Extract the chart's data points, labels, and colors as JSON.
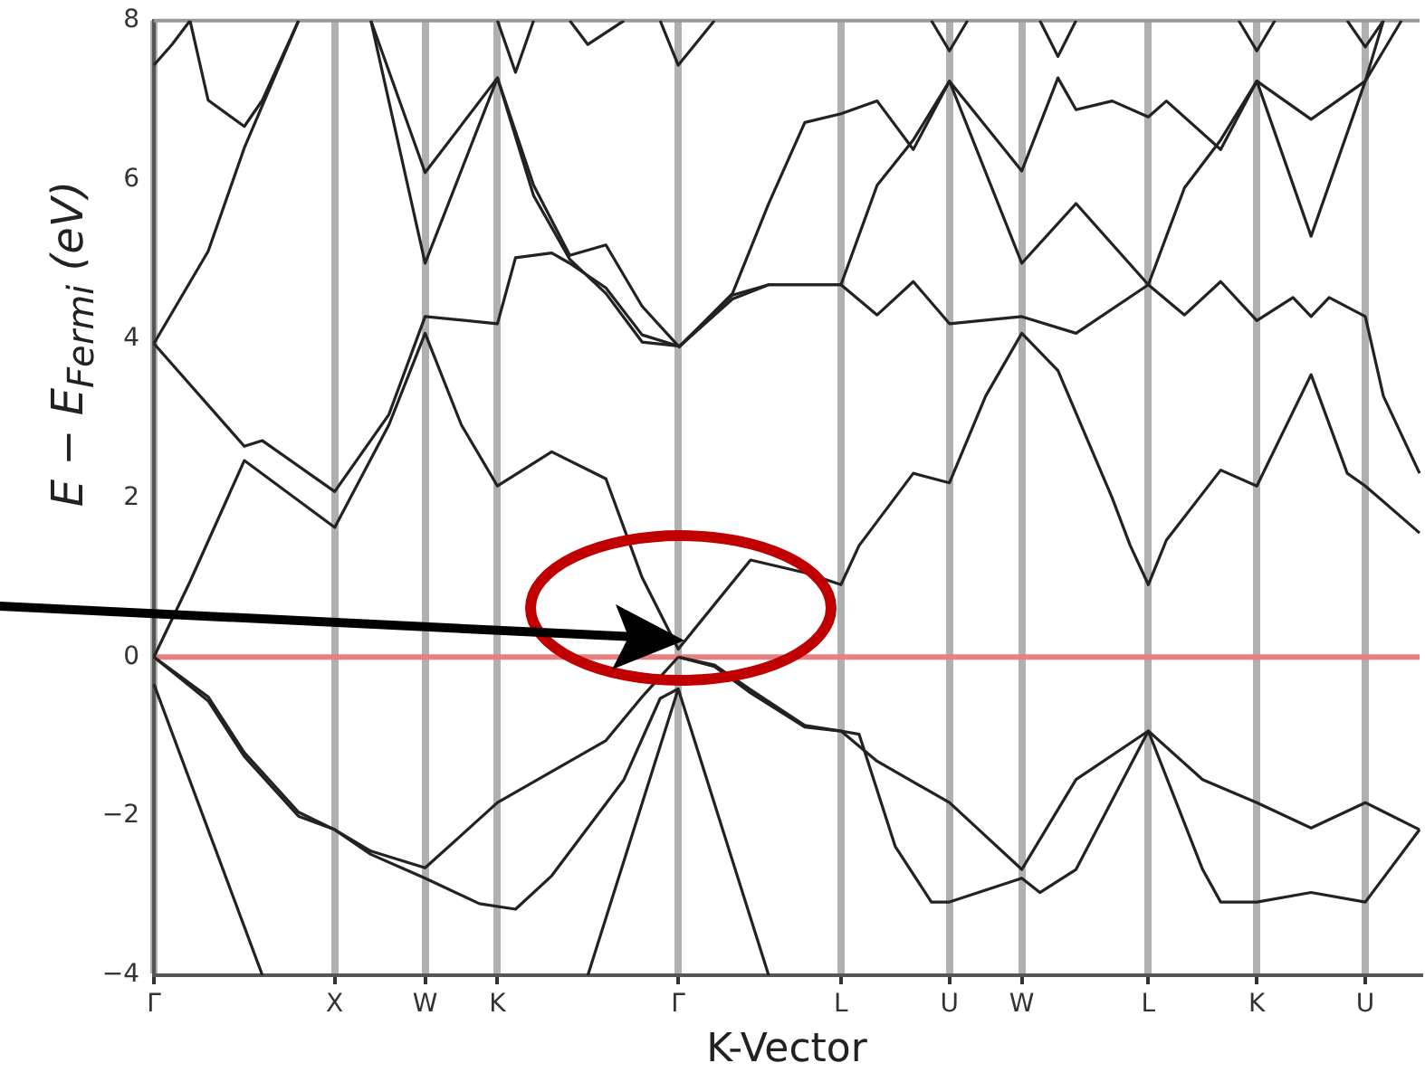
{
  "chart_data": {
    "type": "line",
    "xlabel": "K-Vector",
    "ylabel": "E − E$_{Fermi}$ (eV)",
    "ylim": [
      -4,
      8
    ],
    "categories": [
      "Γ",
      null,
      null,
      null,
      null,
      null,
      null,
      null,
      null,
      null,
      "X",
      null,
      null,
      null,
      null,
      "W",
      null,
      null,
      null,
      "K",
      null,
      null,
      null,
      null,
      null,
      null,
      null,
      null,
      null,
      "Γ",
      null,
      null,
      null,
      null,
      null,
      null,
      null,
      null,
      "L",
      null,
      null,
      null,
      null,
      null,
      "U",
      null,
      null,
      null,
      "W",
      null,
      null,
      null,
      null,
      null,
      null,
      "L",
      null,
      null,
      null,
      null,
      null,
      "K",
      null,
      null,
      null,
      null,
      null,
      "U",
      null,
      null,
      null
    ],
    "yticks": [
      {
        "value": -4,
        "label": "−4"
      },
      {
        "value": -2,
        "label": "−2"
      },
      0,
      2,
      4,
      6,
      8
    ],
    "grid": "x",
    "marker": "none",
    "line_style": "solid",
    "ref_lines": [
      {
        "axis": "y",
        "value": 0,
        "color": "#e88080"
      }
    ],
    "series": [
      {
        "color": "#222222",
        "values": [
          -0.34,
          null,
          null,
          null,
          null,
          null,
          -4,
          null,
          null,
          null,
          null,
          null,
          null,
          null,
          null,
          null,
          null,
          null,
          null,
          null,
          null,
          null,
          null,
          null,
          null,
          null,
          null,
          null,
          null,
          null,
          null,
          null,
          null,
          null,
          null,
          null,
          null,
          null,
          null,
          null,
          null,
          null,
          null,
          null,
          null,
          null,
          null,
          null,
          null,
          null,
          null,
          null,
          null,
          null,
          null,
          null,
          null,
          null,
          null,
          null,
          null,
          null,
          null,
          null,
          null,
          null,
          null,
          null,
          null,
          null,
          null
        ]
      },
      {
        "color": "#222222",
        "values": [
          null,
          null,
          null,
          null,
          null,
          null,
          null,
          null,
          null,
          null,
          null,
          null,
          null,
          null,
          null,
          null,
          null,
          null,
          null,
          null,
          null,
          null,
          null,
          null,
          -4,
          null,
          null,
          null,
          null,
          -0.4,
          null,
          null,
          null,
          null,
          -4,
          null,
          null,
          null,
          null,
          null,
          null,
          null,
          null,
          null,
          null,
          null,
          null,
          null,
          null,
          null,
          null,
          null,
          null,
          null,
          null,
          null,
          null,
          null,
          null,
          null,
          null,
          null,
          null,
          null,
          null,
          null,
          null,
          null,
          null,
          null,
          null
        ]
      },
      {
        "color": "#222222",
        "values": [
          0,
          null,
          null,
          -0.5,
          null,
          -1.2,
          null,
          null,
          -1.95,
          null,
          -2.17,
          null,
          -2.44,
          null,
          null,
          -2.65,
          null,
          null,
          null,
          -1.83,
          null,
          null,
          null,
          null,
          null,
          -1.05,
          null,
          -0.5,
          null,
          0,
          null,
          null,
          null,
          null,
          null,
          null,
          null,
          null,
          null,
          null,
          null,
          null,
          null,
          null,
          null,
          null,
          null,
          null,
          null,
          null,
          null,
          null,
          null,
          null,
          null,
          null,
          null,
          null,
          null,
          null,
          null,
          null,
          null,
          null,
          null,
          null,
          null,
          null,
          null,
          null,
          null
        ]
      },
      {
        "color": "#222222",
        "values": [
          0,
          null,
          null,
          -0.55,
          null,
          -1.25,
          null,
          null,
          -2.0,
          null,
          -2.17,
          null,
          -2.48,
          null,
          null,
          -2.78,
          null,
          null,
          -3.1,
          null,
          -3.17,
          null,
          -2.75,
          null,
          null,
          null,
          -1.54,
          null,
          -0.52,
          -0.4,
          null,
          null,
          null,
          null,
          null,
          null,
          null,
          null,
          null,
          null,
          null,
          null,
          null,
          null,
          null,
          null,
          null,
          null,
          null,
          null,
          null,
          null,
          null,
          null,
          null,
          null,
          null,
          null,
          null,
          null,
          null,
          null,
          null,
          null,
          null,
          null,
          null,
          null,
          null,
          null,
          null
        ]
      },
      {
        "color": "#222222",
        "values": [
          0,
          null,
          0.95,
          null,
          null,
          2.47,
          null,
          null,
          null,
          null,
          1.63,
          null,
          null,
          2.92,
          null,
          4.07,
          null,
          2.92,
          null,
          2.15,
          null,
          null,
          2.58,
          null,
          null,
          2.24,
          null,
          1.0,
          null,
          0.1,
          null,
          null,
          null,
          1.22,
          null,
          null,
          1.06,
          null,
          0.91,
          1.4,
          null,
          null,
          2.31,
          null,
          2.19,
          null,
          3.28,
          null,
          4.07,
          null,
          3.6,
          null,
          null,
          2.0,
          1.4,
          0.91,
          1.47,
          null,
          null,
          2.35,
          null,
          2.15,
          null,
          null,
          3.55,
          null,
          2.31,
          2.15,
          null,
          null,
          1.56
        ]
      },
      {
        "color": "#222222",
        "values": [
          3.94,
          null,
          null,
          null,
          null,
          2.65,
          2.72,
          null,
          null,
          null,
          2.08,
          null,
          null,
          3.05,
          null,
          4.28,
          null,
          null,
          null,
          4.19,
          5.02,
          null,
          5.08,
          4.95,
          null,
          4.64,
          null,
          4.05,
          null,
          3.91,
          null,
          null,
          null,
          null,
          null,
          null,
          null,
          null,
          null,
          null,
          null,
          null,
          null,
          null,
          null,
          null,
          null,
          null,
          null,
          null,
          null,
          null,
          null,
          null,
          null,
          null,
          null,
          null,
          null,
          null,
          null,
          null,
          null,
          null,
          null,
          null,
          null,
          null,
          null,
          null,
          null
        ]
      },
      {
        "color": "#222222",
        "values": [
          3.94,
          null,
          null,
          5.1,
          null,
          6.4,
          null,
          null,
          8,
          null,
          null,
          null,
          null,
          null,
          null,
          null,
          null,
          null,
          null,
          null,
          null,
          null,
          null,
          null,
          null,
          null,
          null,
          null,
          null,
          null,
          null,
          null,
          null,
          null,
          null,
          null,
          null,
          null,
          null,
          null,
          null,
          null,
          null,
          null,
          null,
          null,
          null,
          null,
          null,
          null,
          null,
          null,
          null,
          null,
          null,
          null,
          null,
          null,
          null,
          null,
          null,
          null,
          null,
          null,
          null,
          null,
          null,
          null,
          null,
          null,
          null
        ]
      },
      {
        "color": "#222222",
        "values": [
          7.44,
          7.7,
          8,
          null,
          null,
          null,
          null,
          null,
          null,
          null,
          null,
          null,
          null,
          null,
          null,
          null,
          null,
          null,
          null,
          null,
          null,
          null,
          null,
          null,
          null,
          null,
          null,
          null,
          null,
          null,
          null,
          null,
          null,
          null,
          null,
          null,
          null,
          null,
          null,
          null,
          null,
          null,
          null,
          null,
          null,
          null,
          null,
          null,
          null,
          null,
          null,
          null,
          null,
          null,
          null,
          null,
          null,
          null,
          null,
          null,
          null,
          null,
          null,
          null,
          null,
          null,
          null,
          null,
          null,
          null,
          null
        ]
      },
      {
        "color": "#222222",
        "values": [
          null,
          null,
          8,
          7.0,
          null,
          6.67,
          7.0,
          null,
          8,
          null,
          null,
          null,
          null,
          null,
          null,
          null,
          null,
          null,
          null,
          null,
          null,
          null,
          null,
          null,
          null,
          null,
          null,
          null,
          null,
          null,
          null,
          null,
          null,
          null,
          null,
          null,
          null,
          null,
          null,
          null,
          null,
          null,
          null,
          null,
          null,
          null,
          null,
          null,
          null,
          null,
          null,
          null,
          null,
          null,
          null,
          null,
          null,
          null,
          null,
          null,
          null,
          null,
          null,
          null,
          null,
          null,
          null,
          null,
          null,
          null,
          null
        ]
      },
      {
        "color": "#222222",
        "values": [
          null,
          null,
          null,
          null,
          null,
          null,
          null,
          null,
          null,
          null,
          null,
          null,
          8,
          null,
          null,
          6.09,
          null,
          null,
          null,
          7.28,
          null,
          5.93,
          null,
          5.05,
          null,
          5.18,
          null,
          4.41,
          null,
          3.91,
          null,
          null,
          null,
          null,
          null,
          null,
          null,
          null,
          null,
          null,
          null,
          null,
          null,
          null,
          null,
          null,
          null,
          null,
          null,
          null,
          null,
          null,
          null,
          null,
          null,
          null,
          null,
          null,
          null,
          null,
          null,
          null,
          null,
          null,
          null,
          null,
          null,
          null,
          null,
          null,
          null
        ]
      },
      {
        "color": "#222222",
        "values": [
          null,
          null,
          null,
          null,
          null,
          null,
          null,
          null,
          null,
          null,
          null,
          null,
          8,
          null,
          null,
          4.95,
          null,
          null,
          null,
          7.28,
          null,
          5.8,
          null,
          5.0,
          null,
          4.57,
          null,
          3.96,
          null,
          3.91,
          null,
          null,
          null,
          null,
          null,
          null,
          null,
          null,
          null,
          null,
          null,
          null,
          null,
          null,
          null,
          null,
          null,
          null,
          null,
          null,
          null,
          null,
          null,
          null,
          null,
          null,
          null,
          null,
          null,
          null,
          null,
          null,
          null,
          null,
          null,
          null,
          null,
          null,
          null,
          null,
          null
        ]
      },
      {
        "color": "#222222",
        "values": [
          null,
          null,
          null,
          null,
          null,
          null,
          null,
          null,
          null,
          null,
          null,
          null,
          null,
          null,
          null,
          null,
          null,
          null,
          null,
          8,
          7.35,
          8,
          null,
          null,
          null,
          null,
          null,
          null,
          null,
          null,
          null,
          null,
          null,
          null,
          null,
          null,
          null,
          null,
          null,
          null,
          null,
          null,
          null,
          null,
          null,
          null,
          null,
          null,
          null,
          null,
          null,
          null,
          null,
          null,
          null,
          null,
          null,
          null,
          null,
          null,
          null,
          null,
          null,
          null,
          null,
          null,
          null,
          null,
          null,
          null,
          null
        ]
      },
      {
        "color": "#222222",
        "values": [
          null,
          null,
          null,
          null,
          null,
          null,
          null,
          null,
          null,
          null,
          null,
          null,
          null,
          null,
          null,
          null,
          null,
          null,
          null,
          null,
          null,
          null,
          null,
          8,
          7.7,
          null,
          8,
          null,
          null,
          null,
          null,
          null,
          null,
          null,
          null,
          null,
          null,
          null,
          null,
          null,
          null,
          null,
          null,
          null,
          null,
          null,
          null,
          null,
          null,
          null,
          null,
          null,
          null,
          null,
          null,
          null,
          null,
          null,
          null,
          null,
          null,
          null,
          null,
          null,
          null,
          null,
          null,
          null,
          null,
          null,
          null
        ]
      },
      {
        "color": "#222222",
        "values": [
          null,
          null,
          null,
          null,
          null,
          null,
          null,
          null,
          null,
          null,
          null,
          null,
          null,
          null,
          null,
          null,
          null,
          null,
          null,
          null,
          null,
          null,
          null,
          null,
          null,
          null,
          null,
          null,
          8,
          7.44,
          null,
          8,
          null,
          null,
          null,
          null,
          null,
          null,
          null,
          null,
          null,
          null,
          null,
          null,
          null,
          null,
          null,
          null,
          null,
          null,
          null,
          null,
          null,
          null,
          null,
          null,
          null,
          null,
          null,
          null,
          null,
          null,
          null,
          null,
          null,
          null,
          null,
          null,
          null,
          null,
          null
        ]
      },
      {
        "color": "#222222",
        "values": [
          null,
          null,
          null,
          null,
          null,
          null,
          null,
          null,
          null,
          null,
          null,
          null,
          null,
          null,
          null,
          null,
          null,
          null,
          null,
          null,
          null,
          null,
          null,
          null,
          null,
          null,
          null,
          null,
          null,
          null,
          null,
          null,
          null,
          null,
          null,
          null,
          null,
          null,
          null,
          null,
          null,
          null,
          null,
          8,
          7.62,
          8,
          null,
          null,
          null,
          null,
          null,
          null,
          null,
          null,
          null,
          null,
          null,
          null,
          null,
          null,
          null,
          null,
          null,
          null,
          null,
          null,
          null,
          null,
          null,
          null,
          null
        ]
      },
      {
        "color": "#222222",
        "values": [
          null,
          null,
          null,
          null,
          null,
          null,
          null,
          null,
          null,
          null,
          null,
          null,
          null,
          null,
          null,
          null,
          null,
          null,
          null,
          null,
          null,
          null,
          null,
          null,
          null,
          null,
          null,
          null,
          null,
          null,
          null,
          null,
          null,
          null,
          null,
          null,
          null,
          null,
          null,
          null,
          null,
          null,
          null,
          null,
          null,
          null,
          null,
          null,
          null,
          8,
          7.55,
          8,
          null,
          null,
          null,
          null,
          null,
          null,
          null,
          null,
          null,
          null,
          null,
          null,
          null,
          null,
          null,
          null,
          null,
          null,
          null
        ]
      },
      {
        "color": "#222222",
        "values": [
          null,
          null,
          null,
          null,
          null,
          null,
          null,
          null,
          null,
          null,
          null,
          null,
          null,
          null,
          null,
          null,
          null,
          null,
          null,
          null,
          null,
          null,
          null,
          null,
          null,
          null,
          null,
          null,
          null,
          null,
          null,
          null,
          null,
          null,
          null,
          null,
          null,
          null,
          null,
          null,
          null,
          null,
          null,
          null,
          null,
          null,
          null,
          null,
          null,
          null,
          null,
          null,
          null,
          null,
          null,
          null,
          null,
          null,
          null,
          null,
          8,
          7.62,
          8,
          null,
          null,
          null,
          null,
          null,
          null,
          null,
          null
        ]
      },
      {
        "color": "#222222",
        "values": [
          null,
          null,
          null,
          null,
          null,
          null,
          null,
          null,
          null,
          null,
          null,
          null,
          null,
          null,
          null,
          null,
          null,
          null,
          null,
          null,
          null,
          null,
          null,
          null,
          null,
          null,
          null,
          null,
          null,
          null,
          null,
          null,
          null,
          null,
          null,
          null,
          null,
          null,
          null,
          null,
          null,
          null,
          null,
          null,
          null,
          null,
          null,
          null,
          null,
          null,
          null,
          null,
          null,
          null,
          null,
          null,
          null,
          null,
          null,
          null,
          null,
          null,
          null,
          null,
          null,
          null,
          8,
          7.67,
          8,
          null,
          null
        ]
      },
      {
        "color": "#222222",
        "values": [
          null,
          null,
          null,
          null,
          null,
          null,
          null,
          null,
          null,
          null,
          null,
          null,
          null,
          null,
          null,
          null,
          null,
          null,
          null,
          null,
          null,
          null,
          null,
          null,
          null,
          null,
          null,
          null,
          null,
          3.89,
          null,
          null,
          4.57,
          null,
          5.7,
          null,
          6.72,
          null,
          6.83,
          null,
          6.99,
          null,
          6.38,
          null,
          7.24,
          null,
          null,
          null,
          6.11,
          null,
          7.28,
          6.88,
          null,
          6.99,
          null,
          6.79,
          6.99,
          null,
          null,
          6.38,
          null,
          7.24,
          null,
          null,
          6.76,
          null,
          null,
          7.24,
          8,
          null,
          null
        ]
      },
      {
        "color": "#222222",
        "values": [
          null,
          null,
          null,
          null,
          null,
          null,
          null,
          null,
          null,
          null,
          null,
          null,
          null,
          null,
          null,
          null,
          null,
          null,
          null,
          null,
          null,
          null,
          null,
          null,
          null,
          null,
          null,
          null,
          null,
          3.89,
          null,
          null,
          4.5,
          null,
          4.68,
          null,
          null,
          null,
          4.68,
          null,
          5.93,
          null,
          6.5,
          null,
          7.24,
          null,
          null,
          null,
          4.95,
          null,
          null,
          5.7,
          null,
          null,
          null,
          4.68,
          null,
          5.9,
          null,
          6.5,
          null,
          7.24,
          null,
          null,
          5.29,
          null,
          null,
          7.24,
          null,
          8,
          null
        ]
      },
      {
        "color": "#222222",
        "values": [
          null,
          null,
          null,
          null,
          null,
          null,
          null,
          null,
          null,
          null,
          null,
          null,
          null,
          null,
          null,
          null,
          null,
          null,
          null,
          null,
          null,
          null,
          null,
          null,
          null,
          null,
          null,
          null,
          null,
          3.89,
          null,
          null,
          4.55,
          null,
          4.68,
          null,
          null,
          null,
          4.68,
          null,
          4.3,
          null,
          4.72,
          null,
          4.19,
          null,
          null,
          null,
          4.28,
          null,
          null,
          4.07,
          null,
          null,
          null,
          4.68,
          null,
          4.3,
          null,
          4.72,
          null,
          4.23,
          null,
          4.52,
          4.28,
          4.52,
          null,
          4.28,
          3.28,
          null,
          2.31
        ]
      },
      {
        "color": "#222222",
        "values": [
          null,
          null,
          null,
          null,
          null,
          null,
          null,
          null,
          null,
          null,
          null,
          null,
          null,
          null,
          null,
          null,
          null,
          null,
          null,
          null,
          null,
          null,
          null,
          null,
          null,
          null,
          null,
          null,
          null,
          0,
          null,
          -0.1,
          null,
          -0.41,
          null,
          null,
          -0.86,
          null,
          -0.93,
          null,
          -1.31,
          null,
          null,
          null,
          -1.83,
          null,
          null,
          null,
          -2.67,
          null,
          null,
          -1.54,
          null,
          null,
          null,
          -0.93,
          null,
          null,
          -1.54,
          null,
          null,
          -1.83,
          null,
          null,
          -2.15,
          null,
          null,
          -1.83,
          null,
          null,
          -2.17
        ]
      },
      {
        "color": "#222222",
        "values": [
          null,
          null,
          null,
          null,
          null,
          null,
          null,
          null,
          null,
          null,
          null,
          null,
          null,
          null,
          null,
          null,
          null,
          null,
          null,
          null,
          null,
          null,
          null,
          null,
          null,
          null,
          null,
          null,
          null,
          0,
          null,
          -0.12,
          null,
          -0.45,
          null,
          null,
          -0.88,
          null,
          -0.93,
          -0.97,
          null,
          -2.38,
          null,
          -3.08,
          -3.08,
          null,
          null,
          null,
          -2.78,
          -2.96,
          null,
          -2.67,
          null,
          null,
          null,
          -0.93,
          null,
          null,
          -2.67,
          -3.08,
          null,
          -3.08,
          null,
          null,
          -2.96,
          null,
          null,
          -3.08,
          null,
          null,
          -2.17
        ]
      }
    ]
  }
}
